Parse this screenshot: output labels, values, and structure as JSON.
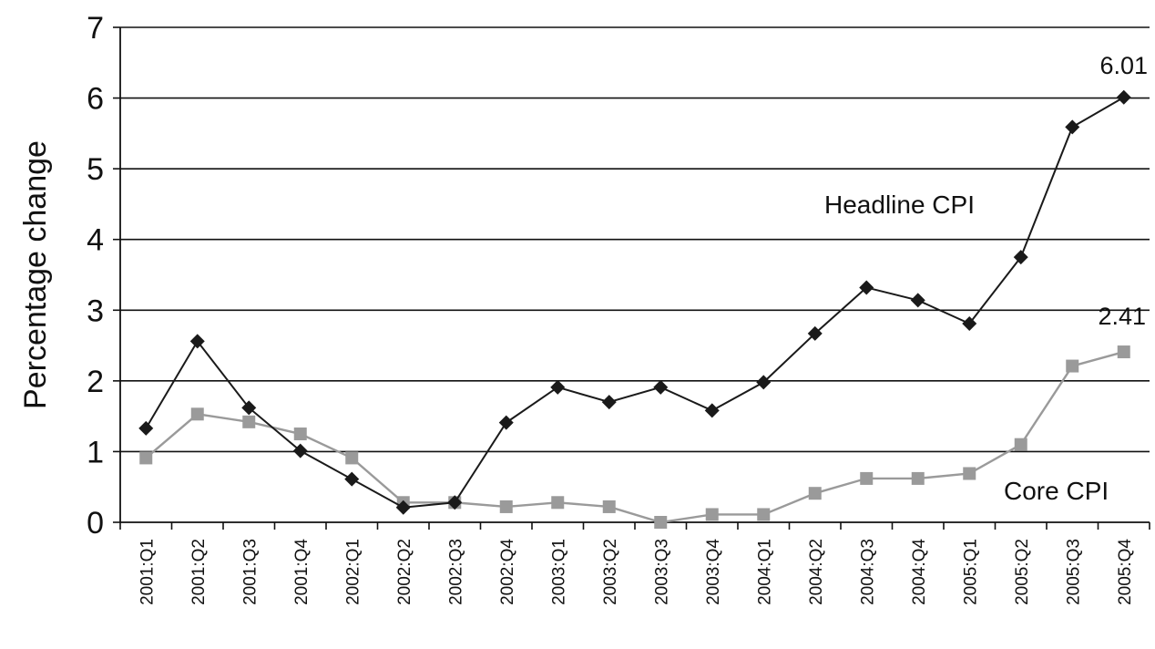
{
  "chart_data": {
    "type": "line",
    "title": "",
    "xlabel": "",
    "ylabel": "Percentage change",
    "ylim": [
      0,
      7
    ],
    "yticks": [
      0,
      1,
      2,
      3,
      4,
      5,
      6,
      7
    ],
    "grid": "horizontal",
    "categories": [
      "2001:Q1",
      "2001:Q2",
      "2001:Q3",
      "2001:Q4",
      "2002:Q1",
      "2002:Q2",
      "2002:Q3",
      "2002:Q4",
      "2003:Q1",
      "2003:Q2",
      "2003:Q3",
      "2003:Q4",
      "2004:Q1",
      "2004:Q2",
      "2004:Q3",
      "2004:Q4",
      "2005:Q1",
      "2005:Q2",
      "2005:Q3",
      "2005:Q4"
    ],
    "series": [
      {
        "name": "Headline CPI",
        "color": "#1a1a1a",
        "marker": "diamond",
        "values": [
          1.33,
          2.56,
          1.62,
          1.01,
          0.61,
          0.21,
          0.28,
          1.41,
          1.91,
          1.7,
          1.91,
          1.58,
          1.98,
          2.67,
          3.32,
          3.14,
          2.81,
          3.75,
          5.59,
          6.01
        ],
        "end_label": "6.01"
      },
      {
        "name": "Core CPI",
        "color": "#9a9a9a",
        "marker": "square",
        "values": [
          0.91,
          1.53,
          1.42,
          1.25,
          0.91,
          0.28,
          0.28,
          0.22,
          0.28,
          0.22,
          0.0,
          0.11,
          0.11,
          0.41,
          0.62,
          0.62,
          0.69,
          1.1,
          2.21,
          2.41
        ],
        "end_label": "2.41"
      }
    ]
  }
}
